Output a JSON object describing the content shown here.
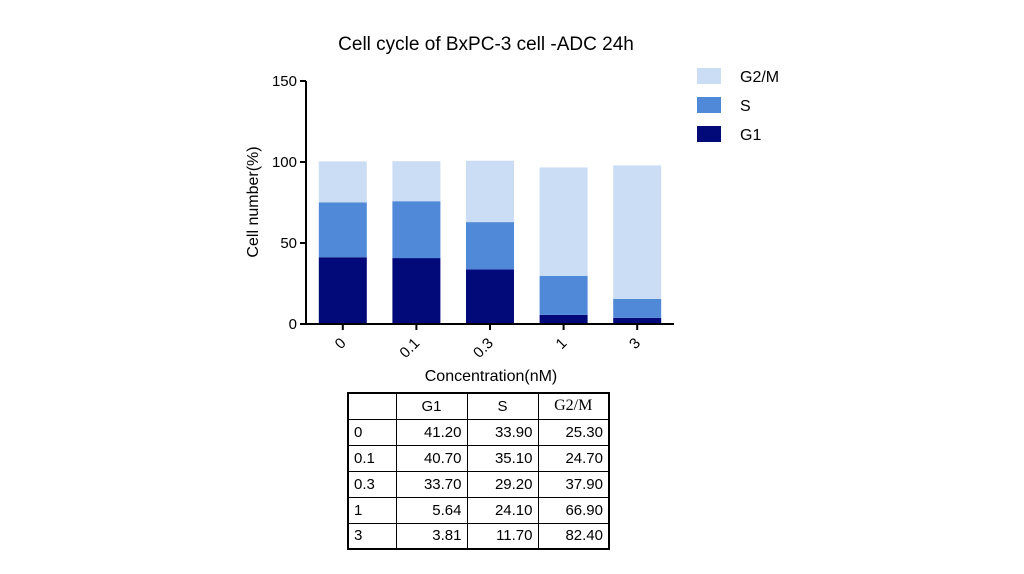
{
  "chart_data": {
    "type": "bar",
    "stacked": true,
    "title": "Cell cycle of BxPC-3 cell -ADC 24h",
    "xlabel": "Concentration(nM)",
    "ylabel": "Cell number(%)",
    "categories": [
      "0",
      "0.1",
      "0.3",
      "1",
      "3"
    ],
    "ylim": [
      0,
      150
    ],
    "yticks": [
      "0",
      "50",
      "100",
      "150"
    ],
    "grid": false,
    "legend_position": "right",
    "series": [
      {
        "name": "G1",
        "color": "#020a7a",
        "values": [
          41.2,
          40.7,
          33.7,
          5.64,
          3.81
        ]
      },
      {
        "name": "S",
        "color": "#4f89d8",
        "values": [
          33.9,
          35.1,
          29.2,
          24.1,
          11.7
        ]
      },
      {
        "name": "G2/M",
        "color": "#cbddf4",
        "values": [
          25.3,
          24.7,
          37.9,
          66.9,
          82.4
        ]
      }
    ],
    "legend": [
      "G2/M",
      "S",
      "G1"
    ]
  },
  "table": {
    "header": [
      "",
      "G1",
      "S",
      "G2/M"
    ],
    "rows": [
      [
        "0",
        "41.20",
        "33.90",
        "25.30"
      ],
      [
        "0.1",
        "40.70",
        "35.10",
        "24.70"
      ],
      [
        "0.3",
        "33.70",
        "29.20",
        "37.90"
      ],
      [
        "1",
        "5.64",
        "24.10",
        "66.90"
      ],
      [
        "3",
        "3.81",
        "11.70",
        "82.40"
      ]
    ]
  }
}
